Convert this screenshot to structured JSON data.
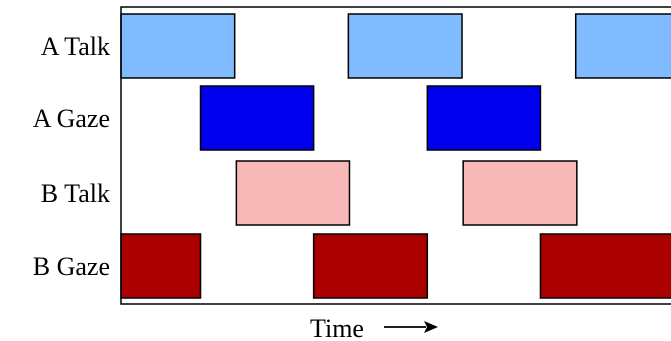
{
  "chart_data": {
    "type": "timeline",
    "title": "",
    "xlabel": "Time",
    "xlabel_arrow": "right-arrow",
    "x_range": [
      0,
      100
    ],
    "rows": [
      {
        "label": "A Talk",
        "color": "#80baff",
        "segments": [
          [
            0,
            20.3
          ],
          [
            40.6,
            60.9
          ],
          [
            81.2,
            100
          ]
        ]
      },
      {
        "label": "A Gaze",
        "color": "#0000ee",
        "segments": [
          [
            14.2,
            34.4
          ],
          [
            54.7,
            74.9
          ]
        ]
      },
      {
        "label": "B Talk",
        "color": "#f8b8b8",
        "segments": [
          [
            20.6,
            40.8
          ],
          [
            61.1,
            81.4
          ]
        ]
      },
      {
        "label": "B Gaze",
        "color": "#aa0000",
        "segments": [
          [
            0,
            14.2
          ],
          [
            34.4,
            54.7
          ],
          [
            74.9,
            100
          ]
        ]
      }
    ]
  }
}
